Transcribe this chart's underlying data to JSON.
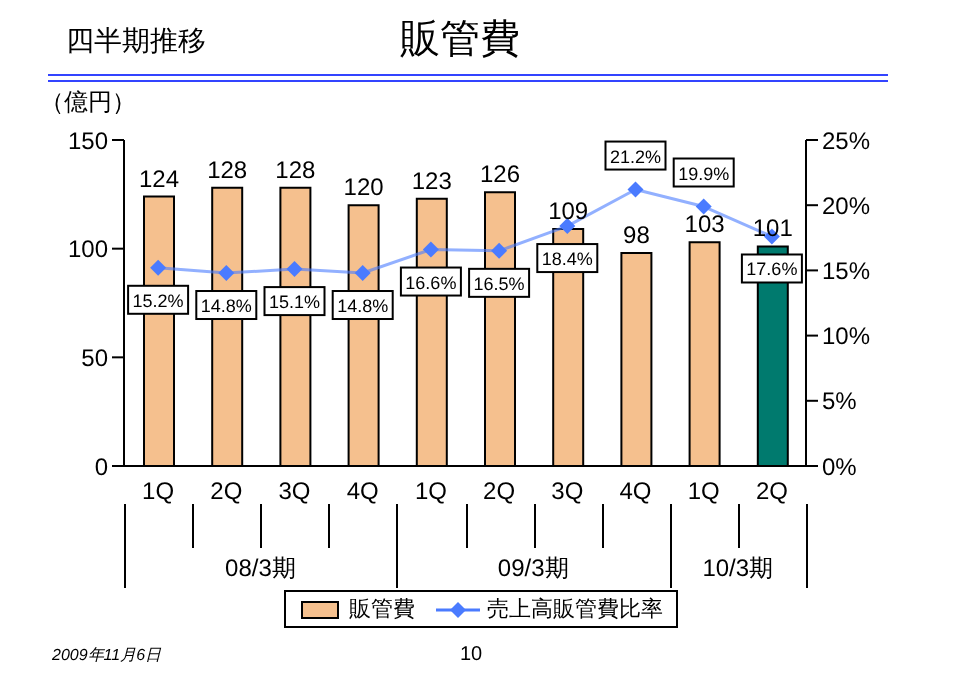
{
  "chart_data": {
    "type": "bar",
    "title": "販管費",
    "subtitle": "四半期推移",
    "ylabel": "（億円）",
    "categories": [
      "1Q",
      "2Q",
      "3Q",
      "4Q",
      "1Q",
      "2Q",
      "3Q",
      "4Q",
      "1Q",
      "2Q"
    ],
    "series": [
      {
        "name": "販管費",
        "color": "#f5c08e",
        "colors": [
          "#f5c08e",
          "#f5c08e",
          "#f5c08e",
          "#f5c08e",
          "#f5c08e",
          "#f5c08e",
          "#f5c08e",
          "#f5c08e",
          "#f5c08e",
          "#007a6e"
        ],
        "values": [
          124,
          128,
          128,
          120,
          123,
          126,
          109,
          98,
          103,
          101
        ]
      },
      {
        "name": "売上高販管費比率",
        "type": "line",
        "axis": "y2",
        "color": "#4a7bff",
        "marker": "diamond",
        "values": [
          15.2,
          14.8,
          15.1,
          14.8,
          16.6,
          16.5,
          18.4,
          21.2,
          19.9,
          17.6
        ],
        "value_labels": [
          "15.2%",
          "14.8%",
          "15.1%",
          "14.8%",
          "16.6%",
          "16.5%",
          "18.4%",
          "21.2%",
          "19.9%",
          "17.6%"
        ]
      }
    ],
    "ylim": [
      0,
      150
    ],
    "yticks": [
      0,
      50,
      100,
      150
    ],
    "y2lim": [
      0,
      25
    ],
    "y2ticks": [
      {
        "value": 0,
        "label": "0%"
      },
      {
        "value": 5,
        "label": "5%"
      },
      {
        "value": 10,
        "label": "10%"
      },
      {
        "value": 15,
        "label": "15%"
      },
      {
        "value": 20,
        "label": "20%"
      },
      {
        "value": 25,
        "label": "25%"
      }
    ],
    "data_labels": true,
    "legend": "bottom",
    "annotations": [
      {
        "text": "08/3期"
      },
      {
        "text": "09/3期"
      },
      {
        "text": "10/3期"
      },
      "2009年11月6日",
      "10"
    ]
  }
}
